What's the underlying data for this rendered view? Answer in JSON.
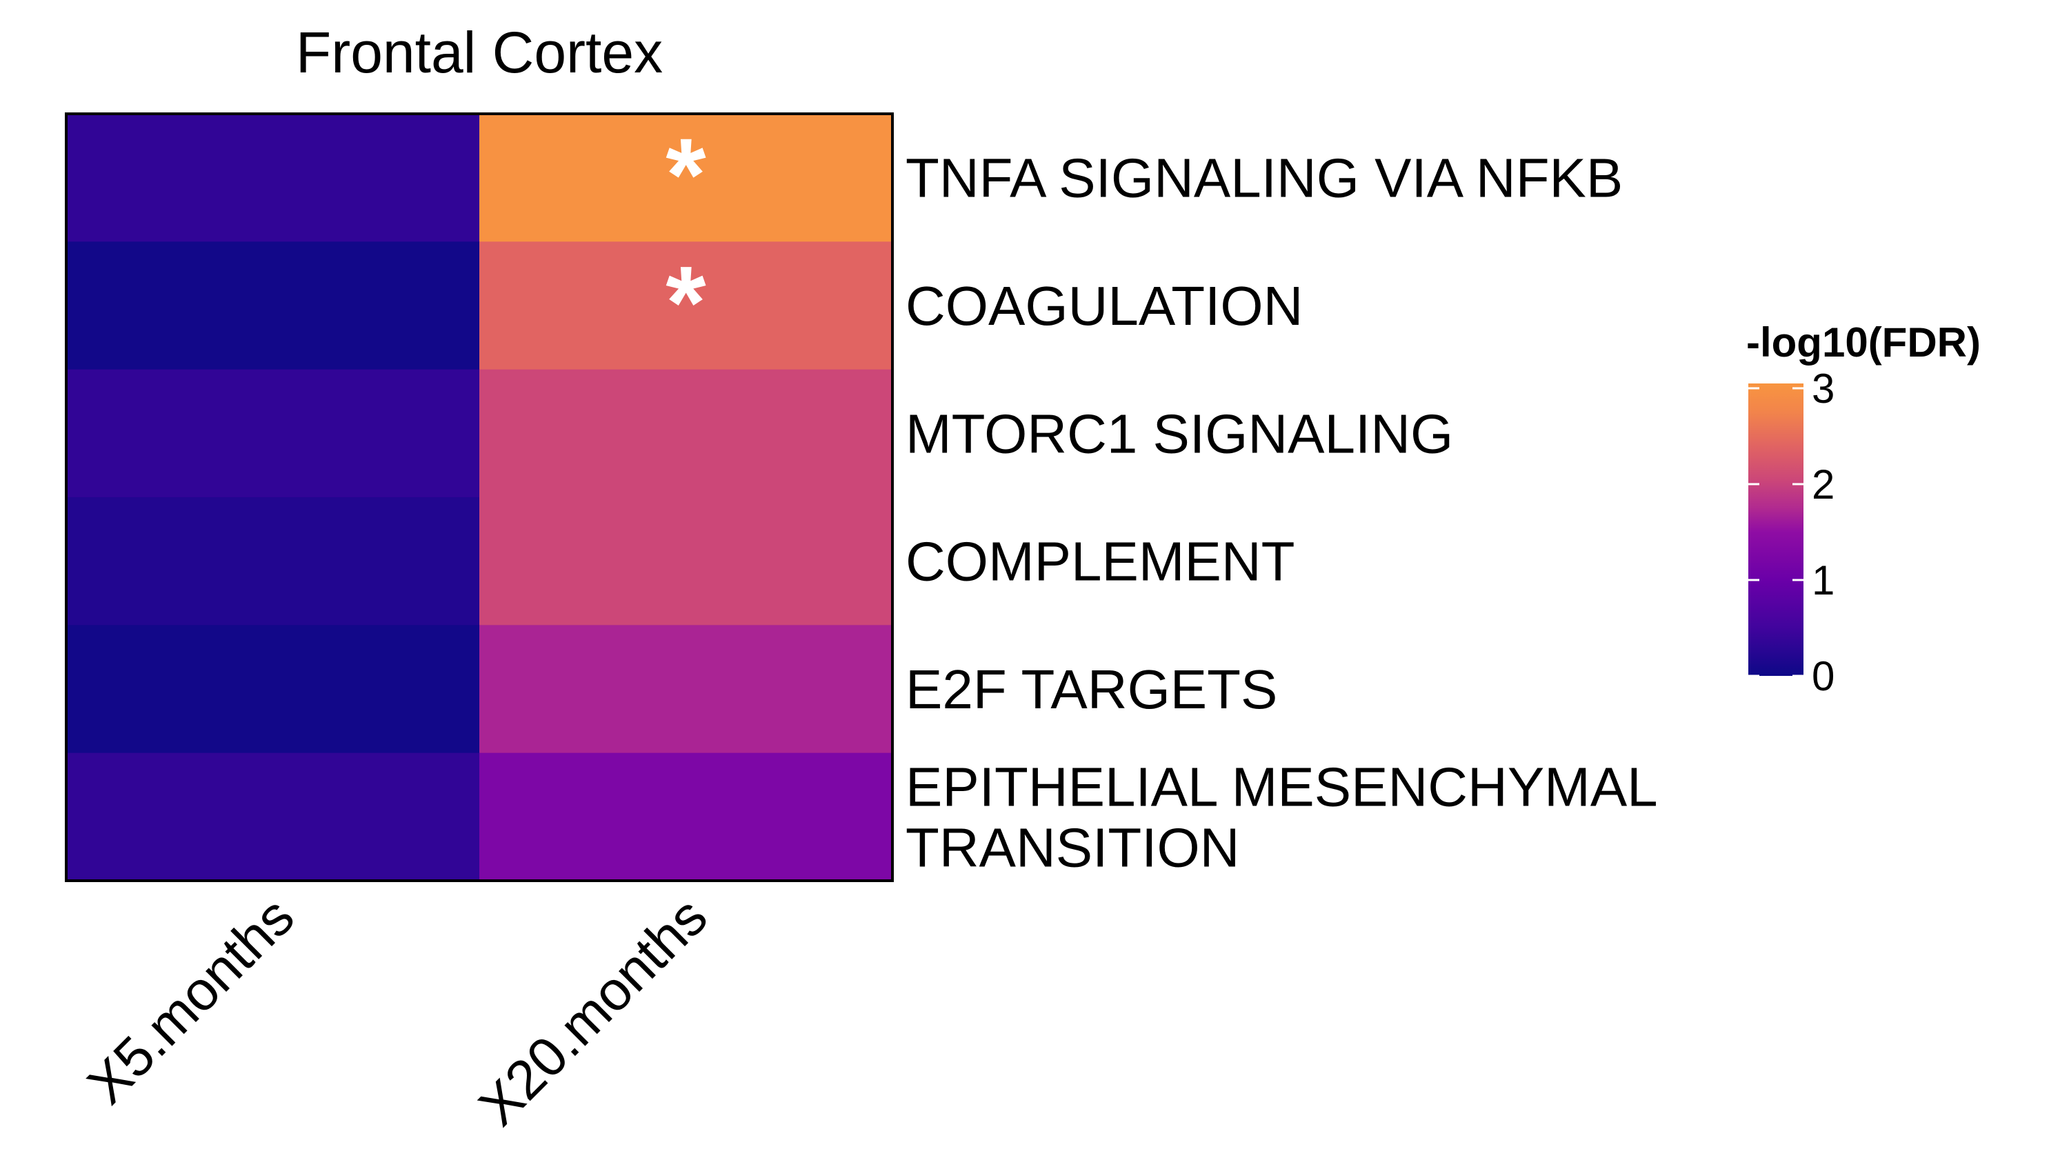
{
  "chart_data": {
    "type": "heatmap",
    "title": "Frontal Cortex",
    "columns": [
      "X5.months",
      "X20.months"
    ],
    "rows": [
      {
        "label": [
          "TNFA SIGNALING VIA NFKB"
        ],
        "values": [
          0.35,
          3.0
        ],
        "significant": [
          false,
          true
        ]
      },
      {
        "label": [
          "COAGULATION"
        ],
        "values": [
          0.05,
          2.4
        ],
        "significant": [
          false,
          true
        ]
      },
      {
        "label": [
          "MTORC1 SIGNALING"
        ],
        "values": [
          0.35,
          2.05
        ],
        "significant": [
          false,
          false
        ]
      },
      {
        "label": [
          "COMPLEMENT"
        ],
        "values": [
          0.2,
          2.05
        ],
        "significant": [
          false,
          false
        ]
      },
      {
        "label": [
          "E2F TARGETS"
        ],
        "values": [
          0.05,
          1.7
        ],
        "significant": [
          false,
          false
        ]
      },
      {
        "label": [
          "EPITHELIAL MESENCHYMAL",
          "TRANSITION"
        ],
        "values": [
          0.35,
          1.25
        ],
        "significant": [
          false,
          false
        ]
      }
    ],
    "significance_marker": "*",
    "legend": {
      "title": "-log10(FDR)",
      "ticks": [
        0,
        1,
        2,
        3
      ],
      "range": [
        0,
        3.05
      ],
      "position": "right",
      "colormap": [
        {
          "value": 0.0,
          "color": "#0d0887"
        },
        {
          "value": 0.5,
          "color": "#41049d"
        },
        {
          "value": 1.0,
          "color": "#6a00a8"
        },
        {
          "value": 1.5,
          "color": "#8f0da4"
        },
        {
          "value": 1.75,
          "color": "#b12a90"
        },
        {
          "value": 2.05,
          "color": "#cc4778"
        },
        {
          "value": 2.4,
          "color": "#e16462"
        },
        {
          "value": 2.75,
          "color": "#f2844b"
        },
        {
          "value": 3.05,
          "color": "#f89540"
        }
      ]
    }
  }
}
